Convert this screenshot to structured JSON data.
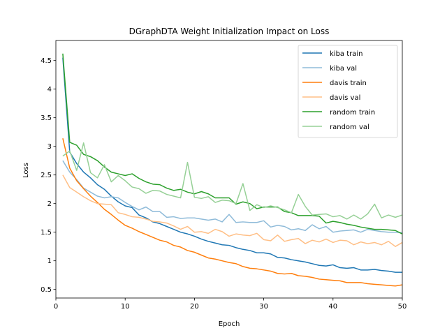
{
  "chart_data": {
    "type": "line",
    "title": "DGraphDTA Weight Initialization Impact on Loss",
    "xlabel": "Epoch",
    "ylabel": "Loss",
    "xlim": [
      0,
      50
    ],
    "ylim": [
      0.35,
      4.85
    ],
    "x_ticks": [
      0,
      10,
      20,
      30,
      40,
      50
    ],
    "y_ticks": [
      0.5,
      1.0,
      1.5,
      2.0,
      2.5,
      3.0,
      3.5,
      4.0,
      4.5
    ],
    "grid": false,
    "legend_position": "top-right",
    "x": [
      1,
      2,
      3,
      4,
      5,
      6,
      7,
      8,
      9,
      10,
      11,
      12,
      13,
      14,
      15,
      16,
      17,
      18,
      19,
      20,
      21,
      22,
      23,
      24,
      25,
      26,
      27,
      28,
      29,
      30,
      31,
      32,
      33,
      34,
      35,
      36,
      37,
      38,
      39,
      40,
      41,
      42,
      43,
      44,
      45,
      46,
      47,
      48,
      49,
      50
    ],
    "series": [
      {
        "name": "kiba train",
        "color": "#1f77b4",
        "values": [
          4.55,
          2.9,
          2.7,
          2.55,
          2.45,
          2.33,
          2.25,
          2.13,
          2.03,
          1.96,
          1.93,
          1.8,
          1.75,
          1.68,
          1.65,
          1.6,
          1.55,
          1.5,
          1.47,
          1.43,
          1.38,
          1.34,
          1.31,
          1.28,
          1.27,
          1.23,
          1.2,
          1.18,
          1.14,
          1.14,
          1.12,
          1.06,
          1.05,
          1.02,
          1.0,
          0.98,
          0.95,
          0.92,
          0.91,
          0.93,
          0.88,
          0.87,
          0.88,
          0.84,
          0.84,
          0.85,
          0.83,
          0.82,
          0.8,
          0.8
        ]
      },
      {
        "name": "kiba val",
        "color": "#8fbbd9",
        "values": [
          2.75,
          2.55,
          2.42,
          2.27,
          2.2,
          2.13,
          2.1,
          2.12,
          2.1,
          2.02,
          1.95,
          1.89,
          1.94,
          1.86,
          1.86,
          1.76,
          1.77,
          1.74,
          1.75,
          1.75,
          1.73,
          1.71,
          1.73,
          1.68,
          1.81,
          1.67,
          1.68,
          1.67,
          1.67,
          1.7,
          1.59,
          1.62,
          1.6,
          1.54,
          1.56,
          1.53,
          1.63,
          1.56,
          1.6,
          1.5,
          1.52,
          1.53,
          1.54,
          1.5,
          1.55,
          1.53,
          1.51,
          1.5,
          1.5,
          1.49
        ]
      },
      {
        "name": "davis train",
        "color": "#ff7f0e",
        "values": [
          3.14,
          2.62,
          2.4,
          2.26,
          2.13,
          2.02,
          1.9,
          1.81,
          1.71,
          1.62,
          1.57,
          1.51,
          1.46,
          1.41,
          1.36,
          1.33,
          1.27,
          1.24,
          1.18,
          1.15,
          1.1,
          1.05,
          1.03,
          1.0,
          0.97,
          0.95,
          0.9,
          0.87,
          0.86,
          0.84,
          0.82,
          0.78,
          0.77,
          0.78,
          0.74,
          0.73,
          0.71,
          0.68,
          0.67,
          0.66,
          0.65,
          0.62,
          0.62,
          0.62,
          0.6,
          0.59,
          0.58,
          0.57,
          0.56,
          0.58
        ]
      },
      {
        "name": "davis val",
        "color": "#ffbf86",
        "values": [
          2.5,
          2.28,
          2.2,
          2.12,
          2.05,
          2.0,
          1.99,
          1.98,
          1.84,
          1.81,
          1.77,
          1.76,
          1.73,
          1.69,
          1.68,
          1.66,
          1.61,
          1.55,
          1.6,
          1.5,
          1.51,
          1.48,
          1.55,
          1.51,
          1.43,
          1.47,
          1.45,
          1.44,
          1.48,
          1.37,
          1.35,
          1.45,
          1.34,
          1.37,
          1.39,
          1.3,
          1.36,
          1.33,
          1.38,
          1.32,
          1.36,
          1.35,
          1.28,
          1.33,
          1.3,
          1.32,
          1.28,
          1.34,
          1.25,
          1.32
        ]
      },
      {
        "name": "random train",
        "color": "#2ca02c",
        "values": [
          4.62,
          3.07,
          3.02,
          2.86,
          2.82,
          2.75,
          2.64,
          2.55,
          2.52,
          2.49,
          2.52,
          2.44,
          2.38,
          2.34,
          2.33,
          2.27,
          2.23,
          2.25,
          2.2,
          2.17,
          2.21,
          2.17,
          2.1,
          2.1,
          2.1,
          1.99,
          2.03,
          2.0,
          1.91,
          1.94,
          1.94,
          1.94,
          1.86,
          1.84,
          1.79,
          1.79,
          1.79,
          1.78,
          1.66,
          1.69,
          1.67,
          1.64,
          1.62,
          1.59,
          1.57,
          1.55,
          1.55,
          1.54,
          1.53,
          1.47
        ]
      },
      {
        "name": "random val",
        "color": "#96d096",
        "values": [
          2.83,
          2.92,
          2.58,
          3.06,
          2.54,
          2.45,
          2.68,
          2.38,
          2.49,
          2.4,
          2.29,
          2.26,
          2.18,
          2.23,
          2.22,
          2.16,
          2.13,
          2.1,
          2.72,
          2.11,
          2.09,
          2.12,
          2.02,
          2.06,
          2.05,
          2.0,
          2.35,
          1.88,
          1.98,
          1.93,
          1.96,
          1.93,
          1.89,
          1.84,
          2.16,
          1.95,
          1.8,
          1.81,
          1.82,
          1.77,
          1.79,
          1.73,
          1.8,
          1.73,
          1.82,
          1.99,
          1.75,
          1.8,
          1.76,
          1.8
        ]
      }
    ]
  }
}
